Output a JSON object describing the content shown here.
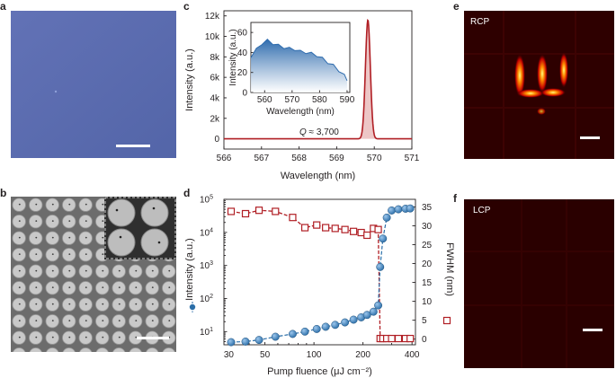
{
  "panels": {
    "a": {
      "letter": "a"
    },
    "b": {
      "letter": "b"
    },
    "c": {
      "letter": "c"
    },
    "d": {
      "letter": "d"
    },
    "e": {
      "letter": "e",
      "label": "RCP"
    },
    "f": {
      "letter": "f",
      "label": "LCP"
    }
  },
  "colors": {
    "optical_bg": "#5a6cb0",
    "sem_bg": "#6a6a6a",
    "dark_red": "#2a0000",
    "spectrum_line": "#b01e24",
    "inset_fill": "#2f6cae",
    "intensity_marker": "#2b6ea8",
    "fwhm_marker": "#b01e24"
  },
  "chart_data": [
    {
      "id": "c",
      "type": "line",
      "title": "",
      "xlabel": "Wavelength (nm)",
      "ylabel": "Intensity (a.u.)",
      "xlim": [
        566,
        571
      ],
      "ylim": [
        -1000,
        12500
      ],
      "xticks": [
        566,
        567,
        568,
        569,
        570,
        571
      ],
      "xtick_labels": [
        "566",
        "567",
        "568",
        "569",
        "570",
        "571"
      ],
      "yticks": [
        0,
        2000,
        4000,
        6000,
        8000,
        10000,
        12000
      ],
      "ytick_labels": [
        "0",
        "2k",
        "4k",
        "6k",
        "8k",
        "10k",
        "12k"
      ],
      "peak": {
        "center": 569.83,
        "height": 11600,
        "fwhm": 0.154,
        "baseline": 0
      },
      "annotation": {
        "var": "Q",
        "text": " ≈ 3,700"
      },
      "inset": {
        "type": "area",
        "xlabel": "Wavelength (nm)",
        "ylabel": "Intensity (a.u.)",
        "xlim": [
          555,
          591
        ],
        "ylim": [
          0,
          70
        ],
        "xticks": [
          560,
          570,
          580,
          590
        ],
        "xtick_labels": [
          "560",
          "570",
          "580",
          "590"
        ],
        "yticks": [
          0,
          20,
          40,
          60
        ],
        "ytick_labels": [
          "0",
          "20",
          "40",
          "60"
        ],
        "x": [
          555,
          557,
          559,
          561,
          563,
          565,
          567,
          569,
          571,
          573,
          575,
          577,
          579,
          581,
          583,
          585,
          587,
          589,
          590
        ],
        "y": [
          36,
          43,
          49,
          52,
          49,
          47,
          45,
          44,
          43,
          41,
          40,
          39,
          37,
          34,
          30,
          27,
          22,
          17,
          13
        ]
      }
    },
    {
      "id": "d",
      "type": "scatter",
      "xlabel": "Pump fluence (μJ cm⁻²)",
      "xscale": "log",
      "xlim": [
        28,
        420
      ],
      "xticks": [
        30,
        50,
        100,
        200,
        400
      ],
      "xtick_labels": [
        "30",
        "50",
        "100",
        "200",
        "400"
      ],
      "left_axis": {
        "label": "Intensity (a.u.)",
        "scale": "log",
        "ylim": [
          4,
          100000
        ],
        "yticks": [
          10,
          100,
          1000,
          10000,
          100000
        ],
        "ytick_labels": [
          [
            "10",
            "1"
          ],
          [
            "10",
            "2"
          ],
          [
            "10",
            "3"
          ],
          [
            "10",
            "4"
          ],
          [
            "10",
            "5"
          ]
        ]
      },
      "right_axis": {
        "label": "FWHM (nm)",
        "ylim": [
          -1.5,
          37
        ],
        "yticks": [
          0,
          5,
          10,
          15,
          20,
          25,
          30,
          35
        ],
        "ytick_labels": [
          "0",
          "5",
          "10",
          "15",
          "20",
          "25",
          "30",
          "35"
        ]
      },
      "series": [
        {
          "name": "Intensity",
          "axis": "left",
          "marker": "circle",
          "x": [
            31,
            38,
            46,
            58,
            74,
            88,
            104,
            118,
            135,
            155,
            175,
            195,
            212,
            232,
            248,
            255,
            265,
            280,
            300,
            330,
            365,
            390
          ],
          "y": [
            4.8,
            5.0,
            5.6,
            7.0,
            8.5,
            10,
            12,
            14,
            16,
            19,
            23,
            27,
            32,
            40,
            62,
            900,
            6500,
            28000,
            46000,
            50000,
            52000,
            53000
          ]
        },
        {
          "name": "FWHM",
          "axis": "right",
          "marker": "square",
          "x": [
            31,
            38,
            46,
            58,
            74,
            88,
            104,
            118,
            135,
            155,
            175,
            195,
            212,
            232,
            248,
            255,
            265,
            280,
            300,
            330,
            365,
            390
          ],
          "y": [
            33.8,
            33.2,
            34.1,
            33.8,
            32.2,
            29.5,
            30.2,
            29.5,
            29.3,
            29.0,
            28.5,
            28.2,
            27.5,
            29.3,
            29.0,
            0.15,
            0.15,
            0.15,
            0.15,
            0.15,
            0.15,
            0.15
          ]
        }
      ]
    }
  ]
}
